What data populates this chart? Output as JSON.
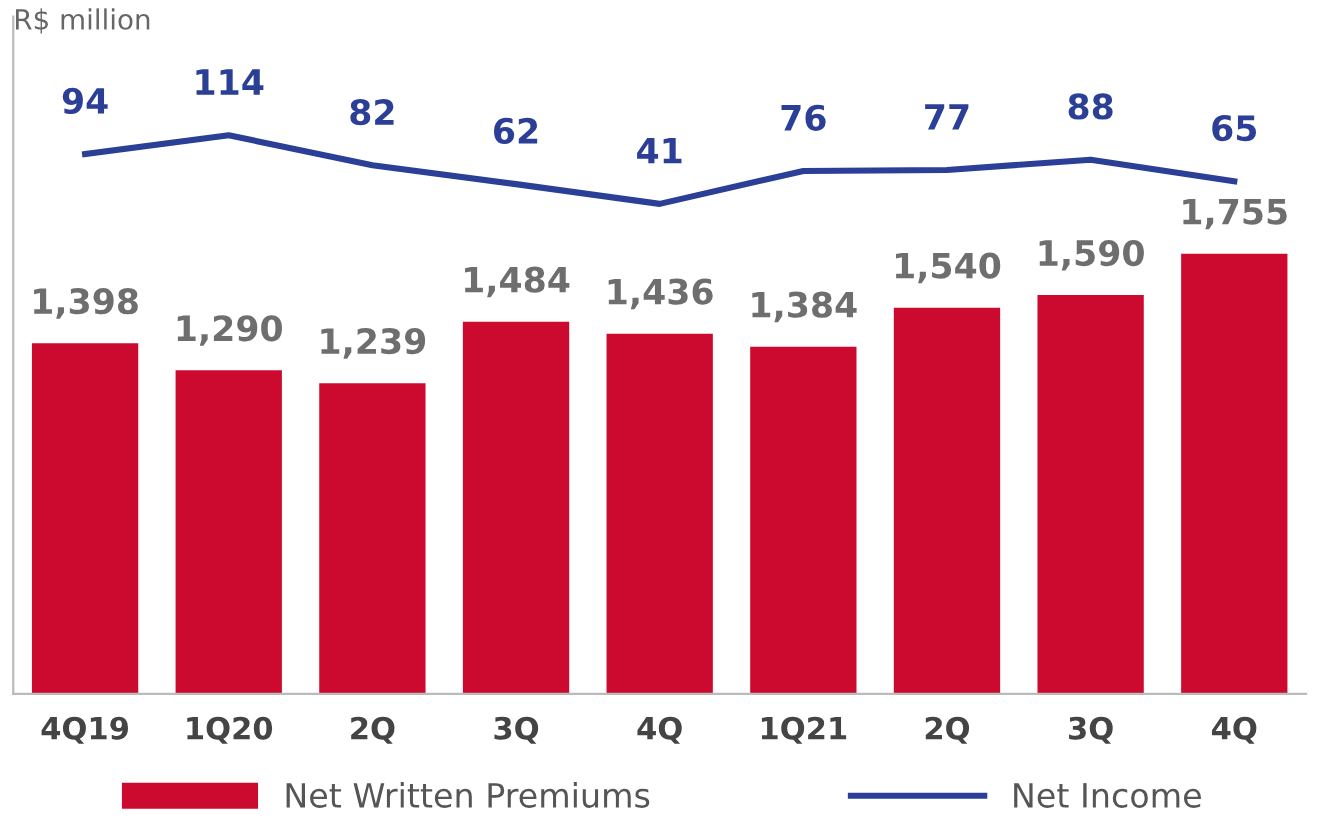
{
  "chart_data": {
    "type": "bar",
    "ylabel": "R$ million",
    "categories": [
      "4Q19",
      "1Q20",
      "2Q",
      "3Q",
      "4Q",
      "1Q21",
      "2Q",
      "3Q",
      "4Q"
    ],
    "series": [
      {
        "name": "Net Written Premiums",
        "color": "#cc0a2f",
        "values": [
          1398,
          1290,
          1239,
          1484,
          1436,
          1384,
          1540,
          1590,
          1755
        ],
        "value_labels": [
          "1,398",
          "1,290",
          "1,239",
          "1,484",
          "1,436",
          "1,384",
          "1,540",
          "1,590",
          "1,755"
        ]
      },
      {
        "name": "Net Income",
        "type": "line",
        "axis": "y2",
        "color": "#2b3f97",
        "values": [
          94,
          114,
          82,
          62,
          41,
          76,
          77,
          88,
          65
        ],
        "value_labels": [
          "94",
          "114",
          "82",
          "62",
          "41",
          "76",
          "77",
          "88",
          "65"
        ]
      }
    ],
    "ylim": [
      0,
      2700
    ],
    "y2lim": [
      -480,
      240
    ],
    "tick_labels": "x",
    "grid": false,
    "legend": "bottom",
    "marker": "none",
    "line_style": "solid"
  }
}
